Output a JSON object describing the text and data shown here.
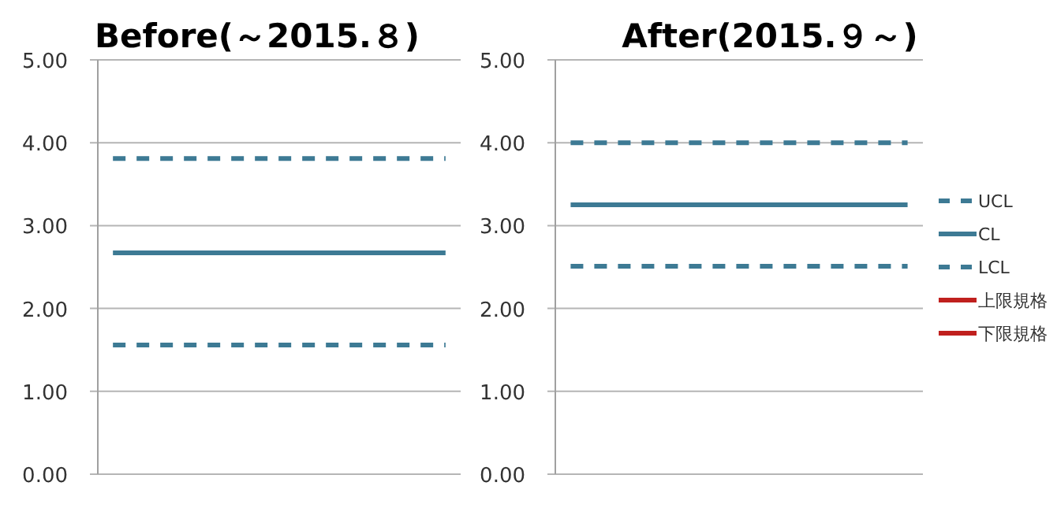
{
  "chart_data": [
    {
      "type": "line",
      "title": "Before(～2015.８)",
      "categories": [
        null,
        null,
        null,
        null,
        null,
        null,
        null,
        null,
        null,
        null,
        null,
        null
      ],
      "series": [
        {
          "color": "#3d7a94",
          "line_style": "dashed",
          "values": [
            3.81,
            3.81,
            3.81,
            3.81,
            3.81,
            3.81,
            3.81,
            3.81,
            3.81,
            3.81,
            3.81,
            3.81
          ]
        },
        {
          "color": "#3d7a94",
          "line_style": "solid",
          "values": [
            2.67,
            2.67,
            2.67,
            2.67,
            2.67,
            2.67,
            2.67,
            2.67,
            2.67,
            2.67,
            2.67,
            2.67
          ]
        },
        {
          "color": "#3d7a94",
          "line_style": "dashed",
          "values": [
            1.56,
            1.56,
            1.56,
            1.56,
            1.56,
            1.56,
            1.56,
            1.56,
            1.56,
            1.56,
            1.56,
            1.56
          ]
        }
      ],
      "ylim": [
        0,
        5
      ],
      "yticks": [
        {
          "value": 0,
          "label": "0.00"
        },
        {
          "value": 1,
          "label": "1.00"
        },
        {
          "value": 2,
          "label": "2.00"
        },
        {
          "value": 3,
          "label": "3.00"
        },
        {
          "value": 4,
          "label": "4.00"
        },
        {
          "value": 5,
          "label": "5.00"
        }
      ],
      "grid": "y",
      "legend": false,
      "marker": "none",
      "tick_labels": "y"
    },
    {
      "type": "line",
      "title": "After(2015.９～)",
      "categories": [
        null,
        null,
        null,
        null,
        null,
        null,
        null,
        null,
        null,
        null,
        null,
        null
      ],
      "series": [
        {
          "name": "UCL",
          "color": "#3d7a94",
          "line_style": "dashed",
          "values": [
            4.0,
            4.0,
            4.0,
            4.0,
            4.0,
            4.0,
            4.0,
            4.0,
            4.0,
            4.0,
            4.0,
            4.0
          ]
        },
        {
          "name": "CL",
          "color": "#3d7a94",
          "line_style": "solid",
          "values": [
            3.25,
            3.25,
            3.25,
            3.25,
            3.25,
            3.25,
            3.25,
            3.25,
            3.25,
            3.25,
            3.25,
            3.25
          ]
        },
        {
          "name": "LCL",
          "color": "#3d7a94",
          "line_style": "dashed",
          "values": [
            2.51,
            2.51,
            2.51,
            2.51,
            2.51,
            2.51,
            2.51,
            2.51,
            2.51,
            2.51,
            2.51,
            2.51
          ]
        },
        {
          "name": "上限規格",
          "color": "#c0201e",
          "line_style": "solid",
          "values": [
            null,
            null,
            null,
            null,
            null,
            null,
            null,
            null,
            null,
            null,
            null,
            null
          ]
        },
        {
          "name": "下限規格",
          "color": "#c0201e",
          "line_style": "solid",
          "values": [
            null,
            null,
            null,
            null,
            null,
            null,
            null,
            null,
            null,
            null,
            null,
            null
          ]
        }
      ],
      "ylim": [
        0,
        5
      ],
      "yticks": [
        {
          "value": 0,
          "label": "0.00"
        },
        {
          "value": 1,
          "label": "1.00"
        },
        {
          "value": 2,
          "label": "2.00"
        },
        {
          "value": 3,
          "label": "3.00"
        },
        {
          "value": 4,
          "label": "4.00"
        },
        {
          "value": 5,
          "label": "5.00"
        }
      ],
      "grid": "y",
      "legend": "right",
      "marker": "none",
      "tick_labels": "y"
    }
  ]
}
